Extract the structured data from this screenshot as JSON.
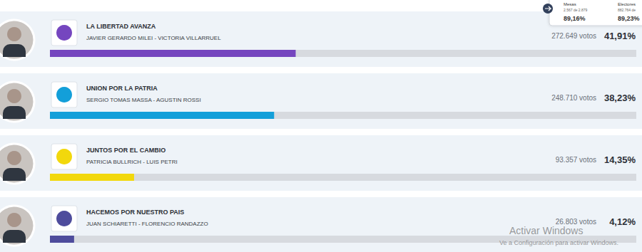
{
  "chart_data": {
    "type": "bar",
    "orientation": "horizontal",
    "data_labels": true,
    "tick_labels": false,
    "grid": false,
    "categories": [
      "LA LIBERTAD AVANZA",
      "UNION POR LA PATRIA",
      "JUNTOS POR EL CAMBIO",
      "HACEMOS POR NUESTRO PAIS"
    ],
    "candidates": [
      "JAVIER GERARDO MILEI - VICTORIA VILLARRUEL",
      "SERGIO TOMAS MASSA - AGUSTIN ROSSI",
      "PATRICIA BULLRICH - LUIS PETRI",
      "JUAN SCHIARETTI - FLORENCIO RANDAZZO"
    ],
    "votes": [
      272649,
      248710,
      93357,
      26803
    ],
    "vote_labels": [
      "272.649 votos",
      "248.710 votos",
      "93.357 votos",
      "26.803 votos"
    ],
    "values": [
      41.91,
      38.23,
      14.35,
      4.12
    ],
    "value_labels": [
      "41,91%",
      "38,23%",
      "14,35%",
      "4,12%"
    ],
    "colors": [
      "#7546bf",
      "#139fd9",
      "#f2d80c",
      "#4e4c9c"
    ],
    "xlim": [
      0,
      100
    ]
  },
  "header": {
    "mesas": {
      "label": "Mesas",
      "count": "2.567 de 2.879",
      "percent": "89,16%"
    },
    "electores": {
      "label": "Electores",
      "count": "882.764 de",
      "percent": "89,23%"
    }
  },
  "watermark": {
    "title": "Activar Windows",
    "subtitle": "Ve a Configuración para activar Windows."
  }
}
